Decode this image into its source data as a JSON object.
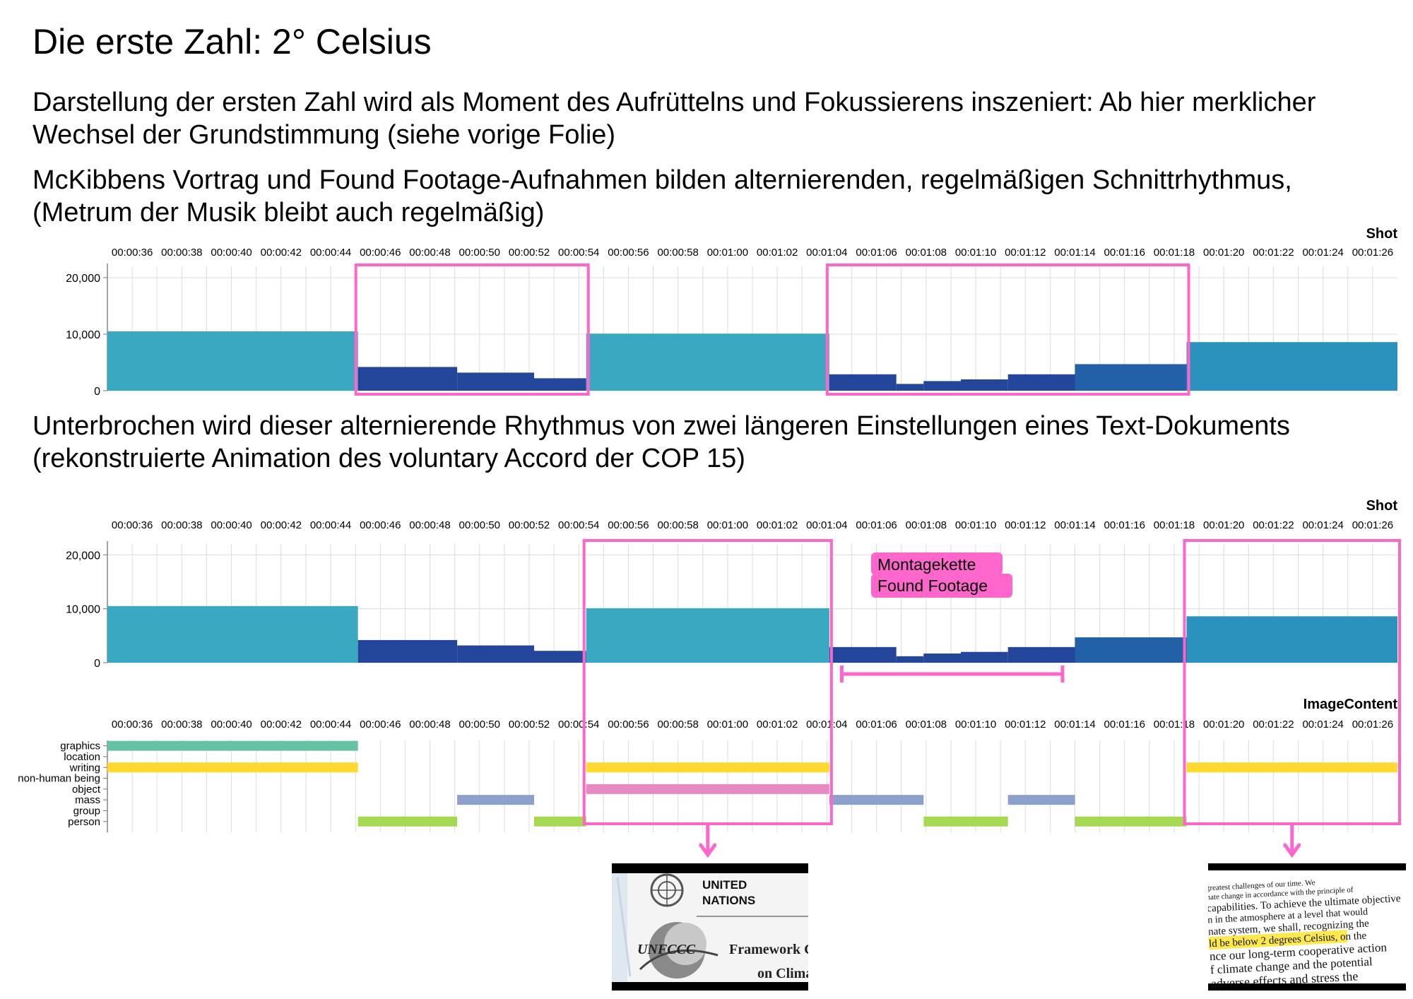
{
  "slide": {
    "title": "Die erste Zahl: 2° Celsius",
    "paragraphs": [
      [
        "Darstellung der ersten Zahl wird als Moment des Aufrüttelns und Fokussierens inszeniert: Ab hier merklicher",
        "Wechsel der Grundstimmung (siehe vorige Folie)"
      ],
      [
        "McKibbens Vortrag und Found Footage-Aufnahmen bilden alternierenden, regelmäßigen Schnittrhythmus,",
        "(Metrum der Musik bleibt auch regelmäßig)"
      ],
      [
        "Unterbrochen wird dieser alternierende Rhythmus von zwei längeren Einstellungen eines Text-Dokuments",
        "(rekonstruierte Animation des voluntary Accord der COP 15)"
      ]
    ],
    "annotation": [
      "Montagekette",
      "Found Footage"
    ]
  },
  "colors": {
    "highlight": "#ff66cc",
    "bar_long": "#3aa8c1",
    "bar_mid": "#2268b0",
    "bar_short": "#23469b",
    "bar_last": "#2a92bd"
  },
  "thumbnails": {
    "un": {
      "line1": "UNITED",
      "line2": "NATIONS",
      "line3": "UNFCCC",
      "line4": "Framework Co",
      "line5": "on Clima"
    },
    "text_doc": {
      "lines": [
        "greatest challenges of our time. We",
        "nate change in accordance with the principle of",
        "capabilities. To achieve the ultimate objective",
        "n in the atmosphere at a level that would",
        "nate system, we shall, recognizing the",
        "ld be below 2 degrees Celsius, on the",
        "nce our long-term cooperative action",
        "f climate change and the potential",
        "adverse effects and stress the"
      ],
      "highlighted": "ld be below 2 degrees Celsius"
    }
  },
  "chart_data": [
    {
      "type": "bar",
      "title": "Shot",
      "xlabel": "",
      "ylabel": "",
      "x_ticks": [
        "00:00:36",
        "00:00:38",
        "00:00:40",
        "00:00:42",
        "00:00:44",
        "00:00:46",
        "00:00:48",
        "00:00:50",
        "00:00:52",
        "00:00:54",
        "00:00:56",
        "00:00:58",
        "00:01:00",
        "00:01:02",
        "00:01:04",
        "00:01:06",
        "00:01:08",
        "00:01:10",
        "00:01:12",
        "00:01:14",
        "00:01:16",
        "00:01:18",
        "00:01:20",
        "00:01:22",
        "00:01:24",
        "00:01:26"
      ],
      "x_range_sec": [
        35,
        87
      ],
      "ylim": [
        0,
        22000
      ],
      "y_ticks": [
        0,
        10000,
        20000
      ],
      "y_tick_labels": [
        "0",
        "10,000",
        "20,000"
      ],
      "shots": [
        {
          "start": 35.0,
          "end": 45.1,
          "value": 10500,
          "color": "#3aa8c1"
        },
        {
          "start": 45.1,
          "end": 49.1,
          "value": 4200,
          "color": "#23469b"
        },
        {
          "start": 49.1,
          "end": 52.2,
          "value": 3200,
          "color": "#23469b"
        },
        {
          "start": 52.2,
          "end": 54.3,
          "value": 2200,
          "color": "#23469b"
        },
        {
          "start": 54.3,
          "end": 64.1,
          "value": 10100,
          "color": "#3aa8c1"
        },
        {
          "start": 64.1,
          "end": 66.8,
          "value": 2900,
          "color": "#23469b"
        },
        {
          "start": 66.8,
          "end": 67.9,
          "value": 1200,
          "color": "#23469b"
        },
        {
          "start": 67.9,
          "end": 69.4,
          "value": 1700,
          "color": "#23469b"
        },
        {
          "start": 69.4,
          "end": 71.3,
          "value": 2000,
          "color": "#23469b"
        },
        {
          "start": 71.3,
          "end": 74.0,
          "value": 2900,
          "color": "#23469b"
        },
        {
          "start": 74.0,
          "end": 78.5,
          "value": 4700,
          "color": "#2260a8"
        },
        {
          "start": 78.5,
          "end": 87.0,
          "value": 8600,
          "color": "#2a92bd"
        }
      ],
      "highlights_chart1": [
        [
          45.1,
          54.3
        ],
        [
          64.1,
          78.5
        ]
      ],
      "highlights_chart2": [
        [
          54.3,
          64.1
        ],
        [
          78.5,
          87.0
        ]
      ],
      "bracket": [
        64.6,
        73.5
      ]
    },
    {
      "type": "timeline",
      "title": "ImageContent",
      "categories": [
        "graphics",
        "location",
        "writing",
        "non-human being",
        "object",
        "mass",
        "group",
        "person"
      ],
      "segments": [
        {
          "category": "graphics",
          "start": 35.0,
          "end": 45.1,
          "color": "#66c2a5"
        },
        {
          "category": "writing",
          "start": 35.0,
          "end": 45.1,
          "color": "#ffd92f"
        },
        {
          "category": "writing",
          "start": 54.3,
          "end": 64.1,
          "color": "#ffd92f"
        },
        {
          "category": "writing",
          "start": 78.5,
          "end": 87.0,
          "color": "#ffd92f"
        },
        {
          "category": "object",
          "start": 54.3,
          "end": 64.1,
          "color": "#e78ac3"
        },
        {
          "category": "mass",
          "start": 49.1,
          "end": 52.2,
          "color": "#8da0cb"
        },
        {
          "category": "mass",
          "start": 64.1,
          "end": 67.9,
          "color": "#8da0cb"
        },
        {
          "category": "mass",
          "start": 71.3,
          "end": 74.0,
          "color": "#8da0cb"
        },
        {
          "category": "person",
          "start": 45.1,
          "end": 49.1,
          "color": "#a6d854"
        },
        {
          "category": "person",
          "start": 52.2,
          "end": 54.3,
          "color": "#a6d854"
        },
        {
          "category": "person",
          "start": 67.9,
          "end": 71.3,
          "color": "#a6d854"
        },
        {
          "category": "person",
          "start": 74.0,
          "end": 78.5,
          "color": "#a6d854"
        }
      ]
    }
  ]
}
